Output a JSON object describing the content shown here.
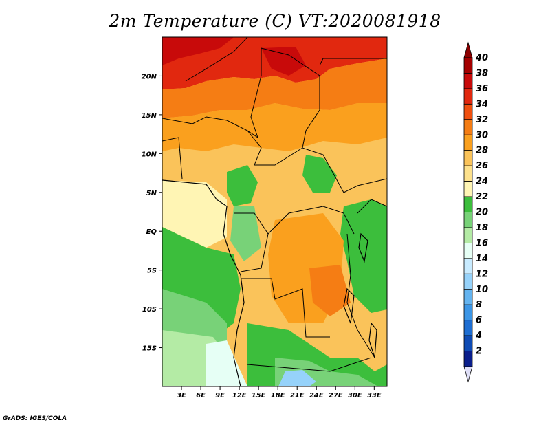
{
  "title": "2m Temperature (C) VT:2020081918",
  "credit": "GrADS: IGES/COLA",
  "map": {
    "lon_range": [
      0,
      35
    ],
    "lat_range": [
      -20,
      25
    ],
    "lat_ticks": [
      {
        "value": 20,
        "label": "20N"
      },
      {
        "value": 15,
        "label": "15N"
      },
      {
        "value": 10,
        "label": "10N"
      },
      {
        "value": 5,
        "label": "5N"
      },
      {
        "value": 0,
        "label": "EQ"
      },
      {
        "value": -5,
        "label": "5S"
      },
      {
        "value": -10,
        "label": "10S"
      },
      {
        "value": -15,
        "label": "15S"
      }
    ],
    "lon_ticks": [
      {
        "value": 3,
        "label": "3E"
      },
      {
        "value": 6,
        "label": "6E"
      },
      {
        "value": 9,
        "label": "9E"
      },
      {
        "value": 12,
        "label": "12E"
      },
      {
        "value": 15,
        "label": "15E"
      },
      {
        "value": 18,
        "label": "18E"
      },
      {
        "value": 21,
        "label": "21E"
      },
      {
        "value": 24,
        "label": "24E"
      },
      {
        "value": 27,
        "label": "27E"
      },
      {
        "value": 30,
        "label": "30E"
      },
      {
        "value": 33,
        "label": "33E"
      }
    ]
  },
  "colorbar": {
    "levels": [
      {
        "label": "40",
        "color": "#a50000"
      },
      {
        "label": "38",
        "color": "#c80a0a"
      },
      {
        "label": "36",
        "color": "#e1280f"
      },
      {
        "label": "34",
        "color": "#f0500f"
      },
      {
        "label": "32",
        "color": "#f57d14"
      },
      {
        "label": "30",
        "color": "#faa01e"
      },
      {
        "label": "28",
        "color": "#fac35a"
      },
      {
        "label": "26",
        "color": "#fde18c"
      },
      {
        "label": "24",
        "color": "#fff5b4"
      },
      {
        "label": "22",
        "color": "#3cbe3c"
      },
      {
        "label": "20",
        "color": "#78d278"
      },
      {
        "label": "18",
        "color": "#b4eba5"
      },
      {
        "label": "16",
        "color": "#e6fff5"
      },
      {
        "label": "14",
        "color": "#c8ebff"
      },
      {
        "label": "12",
        "color": "#96d2fa"
      },
      {
        "label": "10",
        "color": "#64b4f0"
      },
      {
        "label": "8",
        "color": "#3c96e6"
      },
      {
        "label": "6",
        "color": "#1e6ed2"
      },
      {
        "label": "4",
        "color": "#0f4bb4"
      },
      {
        "label": "2",
        "color": "#0a1e8c"
      }
    ],
    "top_triangle_color": "#8c0000",
    "bottom_triangle_color": "#e0e0f8"
  }
}
